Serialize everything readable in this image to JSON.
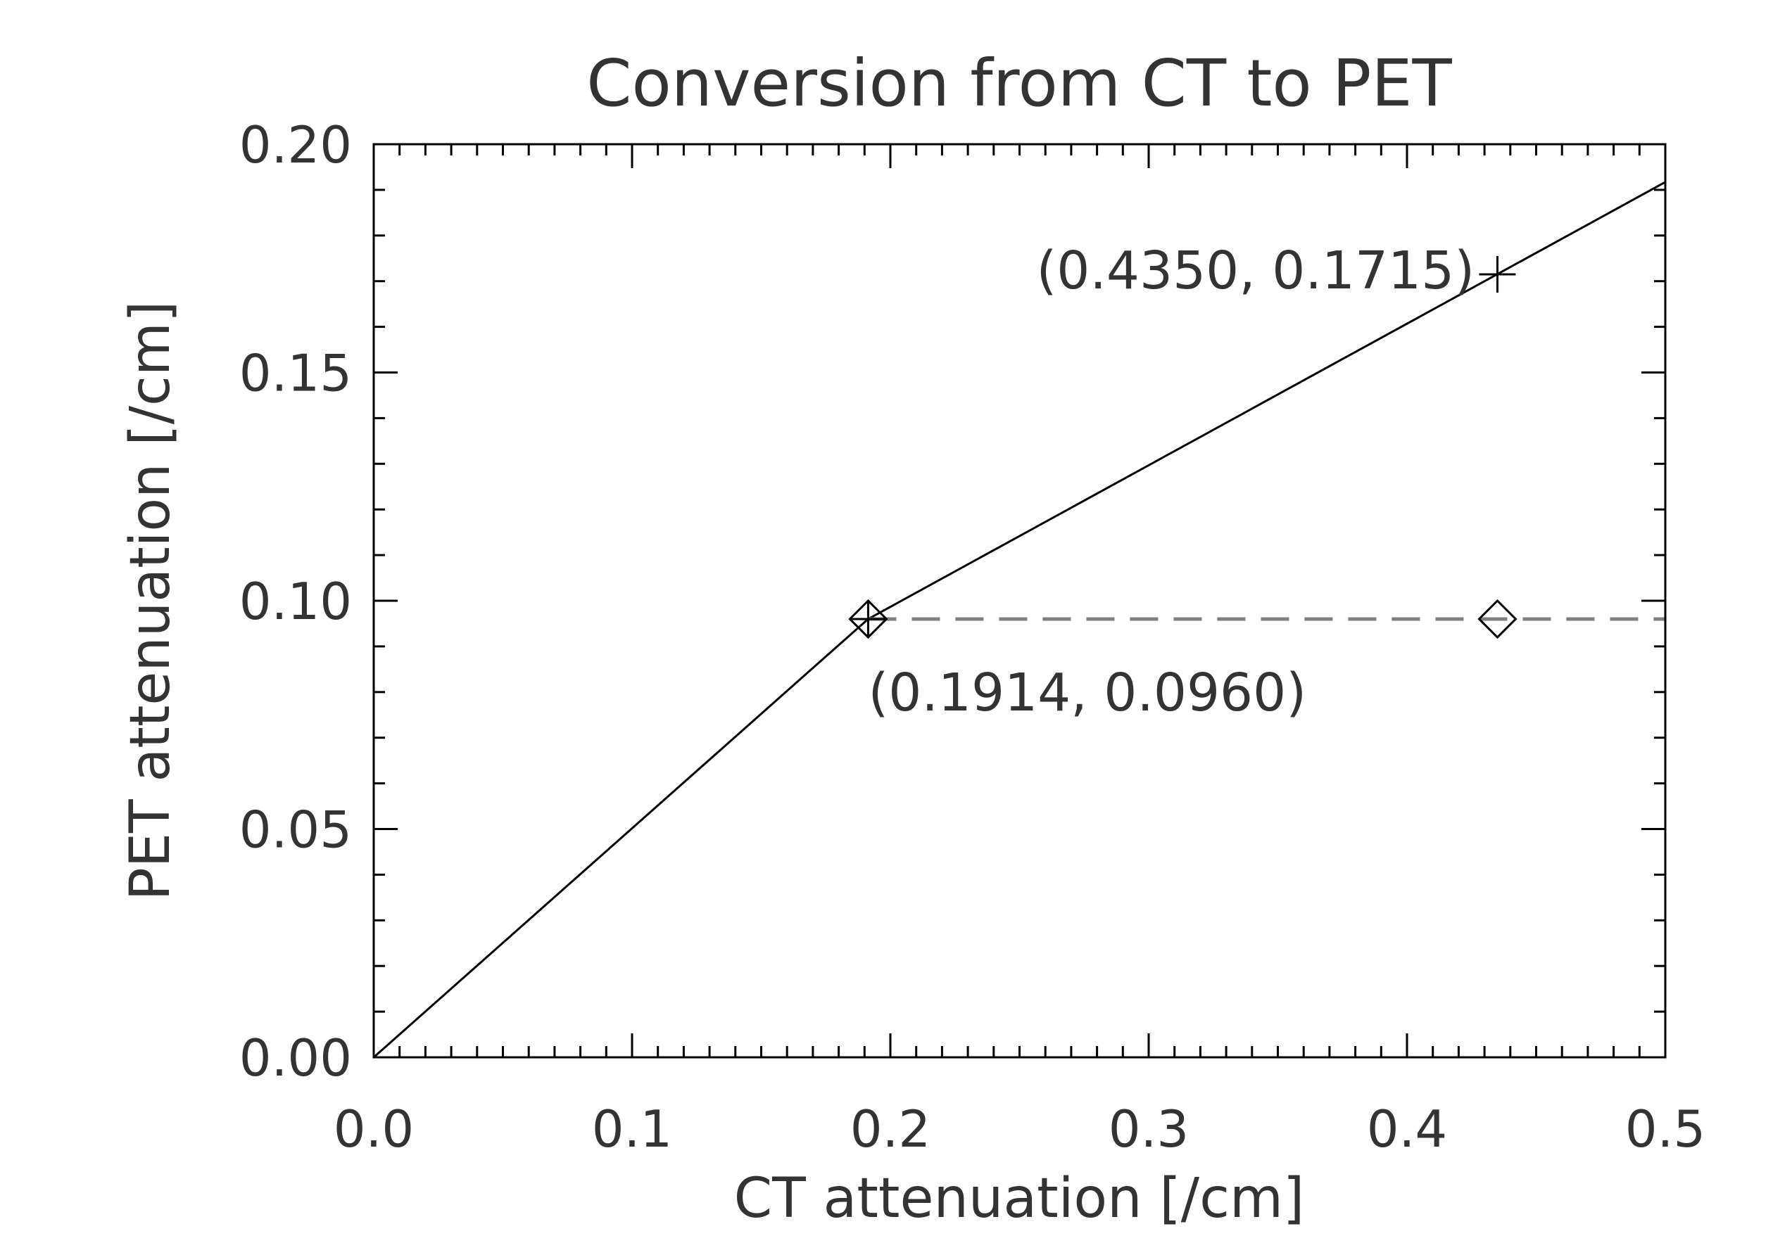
{
  "chart_data": {
    "type": "line",
    "title": "Conversion from CT to PET",
    "xlabel": "CT attenuation [/cm]",
    "ylabel": "PET attenuation [/cm]",
    "xlim": [
      0.0,
      0.5
    ],
    "ylim": [
      0.0,
      0.2
    ],
    "xticks": [
      "0.0",
      "0.1",
      "0.2",
      "0.3",
      "0.4",
      "0.5"
    ],
    "yticks": [
      "0.00",
      "0.05",
      "0.10",
      "0.15",
      "0.20"
    ],
    "grid": false,
    "series": [
      {
        "style": "solid",
        "color": "#000000",
        "x": [
          0.0,
          0.1914,
          0.5
        ],
        "y": [
          0.0,
          0.096,
          0.1917
        ]
      },
      {
        "style": "dashed",
        "color": "#808080",
        "x": [
          0.1914,
          0.5
        ],
        "y": [
          0.096,
          0.096
        ]
      }
    ],
    "markers": [
      {
        "symbol": "diamond",
        "x": 0.1914,
        "y": 0.096
      },
      {
        "symbol": "plus",
        "x": 0.1914,
        "y": 0.096
      },
      {
        "symbol": "diamond",
        "x": 0.435,
        "y": 0.096
      },
      {
        "symbol": "plus",
        "x": 0.435,
        "y": 0.1715
      }
    ],
    "annotations": [
      {
        "text": "(0.4350, 0.1715)",
        "x": 0.435,
        "y": 0.1715
      },
      {
        "text": "(0.1914, 0.0960)",
        "x": 0.1914,
        "y": 0.096
      }
    ]
  }
}
